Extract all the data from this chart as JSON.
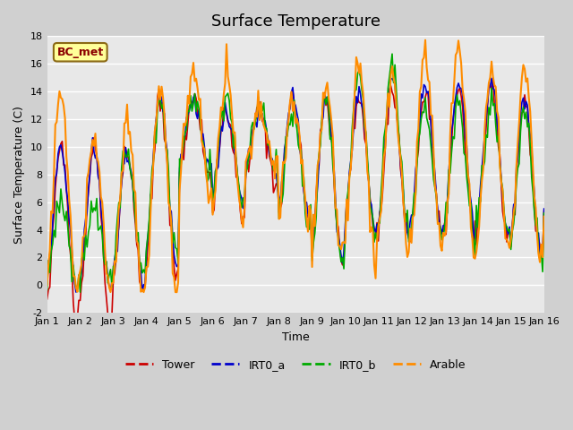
{
  "title": "Surface Temperature",
  "xlabel": "Time",
  "ylabel": "Surface Temperature (C)",
  "ylim": [
    -2,
    18
  ],
  "xlim": [
    0,
    360
  ],
  "fig_bg_color": "#d0d0d0",
  "plot_bg_color": "#e8e8e8",
  "annotation_text": "BC_met",
  "annotation_color": "#8b0000",
  "annotation_bg": "#ffff99",
  "series_colors": {
    "Tower": "#cc0000",
    "IRT0_a": "#0000cc",
    "IRT0_b": "#00aa00",
    "Arable": "#ff8c00"
  },
  "xtick_labels": [
    "Jan 1",
    "Jan 2",
    "Jan 3",
    "Jan 4",
    "Jan 5",
    "Jan 6",
    "Jan 7",
    "Jan 8",
    "Jan 9",
    "Jan 10",
    "Jan 11",
    "Jan 12",
    "Jan 13",
    "Jan 14",
    "Jan 15",
    "Jan 16"
  ],
  "xtick_positions": [
    0,
    24,
    48,
    72,
    96,
    120,
    144,
    168,
    192,
    216,
    240,
    264,
    288,
    312,
    336,
    360
  ],
  "ytick_labels": [
    "-2",
    "0",
    "2",
    "4",
    "6",
    "8",
    "10",
    "12",
    "14",
    "16",
    "18"
  ],
  "ytick_values": [
    -2,
    0,
    2,
    4,
    6,
    8,
    10,
    12,
    14,
    16,
    18
  ],
  "tower_mins": [
    -2.5,
    -2.5,
    -0.5,
    0.5,
    8.0,
    5.0,
    7.5,
    4.5,
    1.8,
    3.8,
    3.5,
    3.5,
    3.3,
    3.3,
    2.0,
    5.0
  ],
  "tower_maxs": [
    10.0,
    10.0,
    9.5,
    13.5,
    13.5,
    12.5,
    12.5,
    13.5,
    13.5,
    13.5,
    14.0,
    14.0,
    14.0,
    14.5,
    13.0,
    9.0
  ],
  "irta_mins": [
    -0.5,
    -0.5,
    0.0,
    2.0,
    8.5,
    6.0,
    8.0,
    5.0,
    2.0,
    4.0,
    4.0,
    4.0,
    4.0,
    4.0,
    2.5,
    5.5
  ],
  "irta_maxs": [
    10.0,
    10.0,
    9.5,
    13.5,
    13.5,
    12.5,
    12.5,
    13.5,
    13.5,
    14.0,
    14.5,
    14.5,
    14.5,
    14.5,
    13.5,
    9.5
  ],
  "irtb_mins": [
    0.0,
    0.0,
    1.0,
    2.0,
    8.0,
    6.0,
    8.5,
    4.5,
    1.5,
    3.5,
    3.5,
    3.5,
    3.5,
    4.0,
    2.0,
    5.0
  ],
  "irtb_maxs": [
    6.0,
    6.0,
    10.0,
    13.5,
    13.5,
    13.5,
    12.5,
    12.5,
    13.5,
    15.5,
    16.0,
    13.0,
    13.0,
    13.0,
    13.0,
    10.0
  ],
  "arable_mins": [
    -0.5,
    -0.5,
    -0.5,
    0.0,
    7.5,
    4.8,
    8.0,
    4.5,
    2.0,
    2.5,
    2.5,
    2.5,
    2.3,
    2.3,
    2.0,
    5.0
  ],
  "arable_maxs": [
    13.5,
    11.0,
    11.5,
    14.0,
    15.5,
    15.0,
    13.0,
    13.5,
    14.0,
    16.0,
    15.5,
    17.0,
    17.0,
    16.0,
    15.5,
    13.0
  ]
}
